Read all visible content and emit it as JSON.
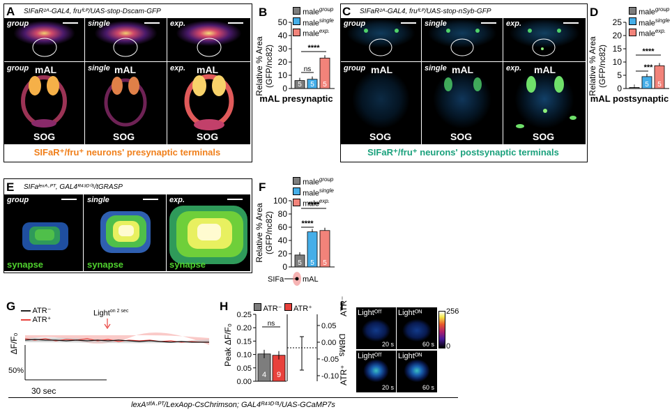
{
  "colors": {
    "group": "#7d7d7d",
    "single": "#45aee8",
    "exp": "#f2837a",
    "atr_minus": "#222222",
    "atr_plus": "#e8413c",
    "pre_caption": "#f07f1a",
    "post_caption": "#1aa17c"
  },
  "A": {
    "label": "A",
    "genotype": "SIFaR²ᴬ-GAL4, fruᶠᴸᴾ/UAS-stop-Dscam-GFP",
    "tags": [
      "group",
      "single",
      "exp."
    ],
    "region_top": "mAL",
    "region_bottom": "SOG",
    "caption": "SIFaR⁺/fru⁺ neurons' presynaptic terminals"
  },
  "B": {
    "label": "B",
    "ylabel1": "Relative % Area",
    "ylabel2": "(GFP/nc82)",
    "yticks": [
      "0",
      "10",
      "20",
      "30",
      "40",
      "50"
    ],
    "title": "mAL presynaptic",
    "n": [
      "5",
      "5",
      "5"
    ],
    "sig_ns": "ns",
    "sig": "****"
  },
  "C": {
    "label": "C",
    "genotype": "SIFaR²ᴬ-GAL4, fruᶠᴸᴾ/UAS-stop-nSyb-GFP",
    "tags": [
      "group",
      "single",
      "exp."
    ],
    "region_top": "mAL",
    "region_bottom": "SOG",
    "caption": "SIFaR⁺/fru⁺ neurons' postsynaptic terminals"
  },
  "D": {
    "label": "D",
    "ylabel1": "Relative % Area",
    "ylabel2": "(GFP/nc82)",
    "yticks": [
      "0",
      "5",
      "10",
      "15",
      "20",
      "25"
    ],
    "title": "mAL postsynaptic",
    "n": [
      "5",
      "5",
      "5"
    ],
    "sig1": "***",
    "sig2": "****"
  },
  "E": {
    "label": "E",
    "genotype": "SIFaˡᵉˣᴬ·ᴾᵀ, GAL4ᴿ⁴³ᴰ⁰¹/tGRASP",
    "tags": [
      "group",
      "single",
      "exp."
    ],
    "synapse": "synapse"
  },
  "F": {
    "label": "F",
    "ylabel1": "Relative % Area",
    "ylabel2": "(GFP/nc82)",
    "yticks": [
      "0",
      "20",
      "40",
      "60",
      "80",
      "100"
    ],
    "n": [
      "5",
      "5",
      "5"
    ],
    "sig": "****",
    "sifa": "SIFa",
    "mal": "mAL"
  },
  "legend": {
    "prefix": "male",
    "sub": [
      "group",
      "single",
      "exp."
    ]
  },
  "G": {
    "label": "G",
    "atr_minus": "ATR⁻",
    "atr_plus": "ATR⁺",
    "light": "Light",
    "light_sup": "on 2 sec",
    "ylabel": "ΔF/F₀",
    "scale_y": "50%",
    "scale_x": "30 sec"
  },
  "H": {
    "label": "H",
    "ylabel": "Peak ΔF/F₀",
    "yticks": [
      "0.00",
      "0.05",
      "0.10",
      "0.15",
      "0.20",
      "0.25"
    ],
    "y2ticks": [
      "-0.10",
      "-0.05",
      "0.00",
      "0.05"
    ],
    "y2label": "DBMs",
    "legend_minus": "ATR⁻",
    "legend_plus": "ATR⁺",
    "ns": "ns",
    "n": [
      "4",
      "9"
    ]
  },
  "I": {
    "label": "I",
    "row_minus": "ATR⁻",
    "row_plus": "ATR⁺",
    "light_off": "Lightᴼᶠᶠ",
    "light_on": "Lightᴼᴺ",
    "t1": "20 s",
    "t2": "60 s",
    "cbar_max": "256",
    "cbar_min": "0"
  },
  "footer": "lexAˢᴵᶠᴬ·ᴾᵀ/LexAop-CsChrimson; GAL4ᴿ⁴³ᴰ⁰¹/UAS-GCaMP7s",
  "chart_data": [
    {
      "type": "bar",
      "panel": "B",
      "title": "mAL presynaptic",
      "ylabel": "Relative % Area (GFP/nc82)",
      "categories": [
        "male group",
        "male single",
        "male exp."
      ],
      "values": [
        6,
        7,
        23
      ],
      "ylim": [
        0,
        50
      ]
    },
    {
      "type": "bar",
      "panel": "D",
      "title": "mAL postsynaptic",
      "ylabel": "Relative % Area (GFP/nc82)",
      "categories": [
        "male group",
        "male single",
        "male exp."
      ],
      "values": [
        0.4,
        4.5,
        8.6
      ],
      "ylim": [
        0,
        25
      ]
    },
    {
      "type": "bar",
      "panel": "F",
      "ylabel": "Relative % Area (GFP/nc82)",
      "categories": [
        "male group",
        "male single",
        "male exp."
      ],
      "values": [
        18,
        53,
        55
      ],
      "ylim": [
        0,
        100
      ]
    },
    {
      "type": "bar",
      "panel": "H",
      "ylabel": "Peak ΔF/F₀",
      "categories": [
        "ATR⁻",
        "ATR⁺"
      ],
      "values": [
        0.102,
        0.097
      ],
      "ylim": [
        0,
        0.25
      ]
    }
  ]
}
